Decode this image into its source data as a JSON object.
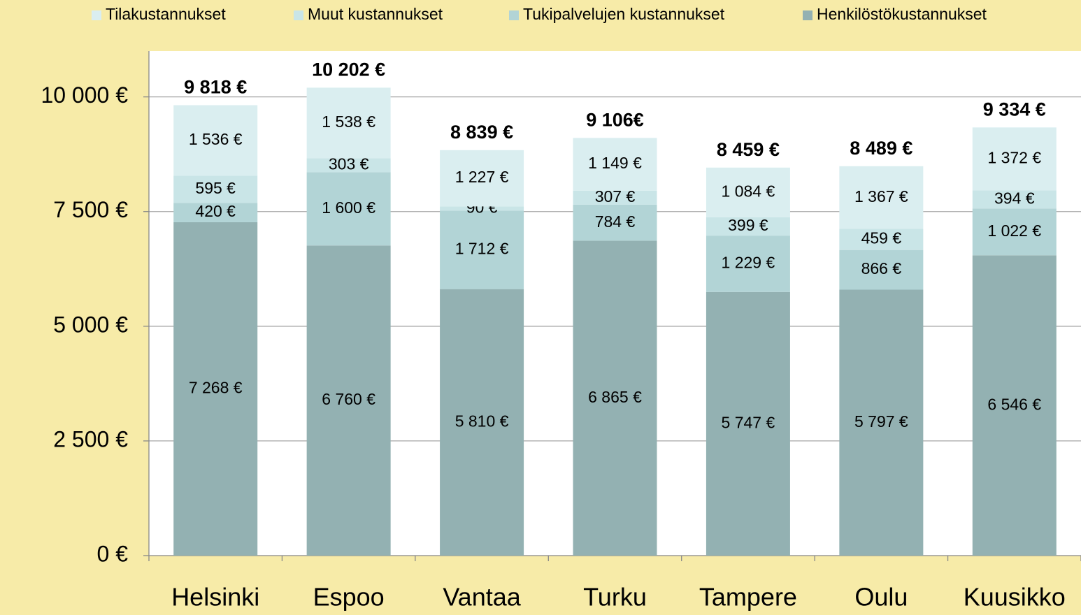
{
  "chart_data": {
    "type": "stacked_bar",
    "categories": [
      "Helsinki",
      "Espoo",
      "Vantaa",
      "Turku",
      "Tampere",
      "Oulu",
      "Kuusikko"
    ],
    "series": [
      {
        "name": "Henkilöstökustannukset",
        "color": "#93b1b2",
        "values": [
          7268,
          6760,
          5810,
          6865,
          5747,
          5797,
          6546
        ],
        "value_labels": [
          "7 268 €",
          "6 760 €",
          "5 810 €",
          "6 865 €",
          "5 747 €",
          "5 797 €",
          "6 546 €"
        ]
      },
      {
        "name": "Tukipalvelujen kustannukset",
        "color": "#b2d4d6",
        "values": [
          420,
          1600,
          1712,
          784,
          1229,
          866,
          1022
        ],
        "value_labels": [
          "420 €",
          "1 600 €",
          "1 712 €",
          "784 €",
          "1 229 €",
          "866 €",
          "1 022 €"
        ]
      },
      {
        "name": "Muut kustannukset",
        "color": "#c9e5e7",
        "values": [
          595,
          303,
          90,
          307,
          399,
          459,
          394
        ],
        "value_labels": [
          "595 €",
          "303 €",
          "90 €",
          "307 €",
          "399 €",
          "459 €",
          "394 €"
        ]
      },
      {
        "name": "Tilakustannukset",
        "color": "#daeef0",
        "values": [
          1536,
          1538,
          1227,
          1149,
          1084,
          1367,
          1372
        ],
        "value_labels": [
          "1 536 €",
          "1 538 €",
          "1 227 €",
          "1 149 €",
          "1 084 €",
          "1 367 €",
          "1 372 €"
        ]
      }
    ],
    "totals": {
      "values": [
        9818,
        10202,
        8839,
        9106,
        8459,
        8489,
        9334
      ],
      "value_labels": [
        "9 818 €",
        "10 202 €",
        "8 839 €",
        "9 106€",
        "8 459 €",
        "8 489 €",
        "9 334 €"
      ]
    },
    "ylim": [
      0,
      11000
    ],
    "yticks": [
      {
        "value": 0,
        "label": "0 €"
      },
      {
        "value": 2500,
        "label": "2 500 €"
      },
      {
        "value": 5000,
        "label": "5 000 €"
      },
      {
        "value": 7500,
        "label": "7 500 €"
      },
      {
        "value": 10000,
        "label": "10 000 €"
      }
    ],
    "grid": true,
    "legend": "top"
  }
}
